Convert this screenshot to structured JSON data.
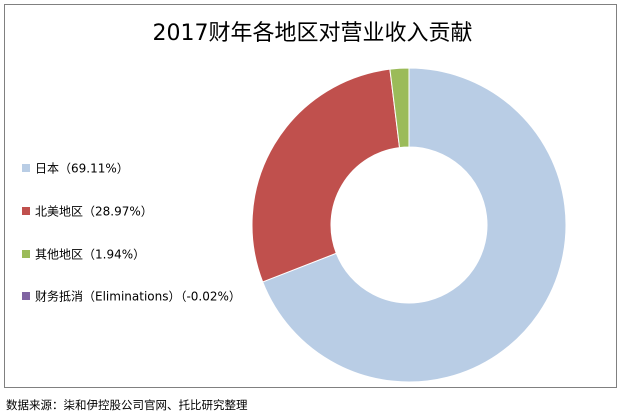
{
  "chart_data": {
    "type": "pie",
    "title": "2017财年各地区对营业收入贡献",
    "legend_position": "left",
    "slices": [
      {
        "label": "日本（69.11%）",
        "value": 69.11,
        "color": "#b9cde5"
      },
      {
        "label": "北美地区（28.97%）",
        "value": 28.97,
        "color": "#c0504d"
      },
      {
        "label": "其他地区（1.94%）",
        "value": 1.94,
        "color": "#9bbb59"
      },
      {
        "label": "财务抵消（Eliminations）（-0.02%）",
        "value": -0.02,
        "color": "#8064a2"
      }
    ]
  },
  "footer": {
    "source": "数据来源：柒和伊控股公司官网、托比研究整理"
  }
}
